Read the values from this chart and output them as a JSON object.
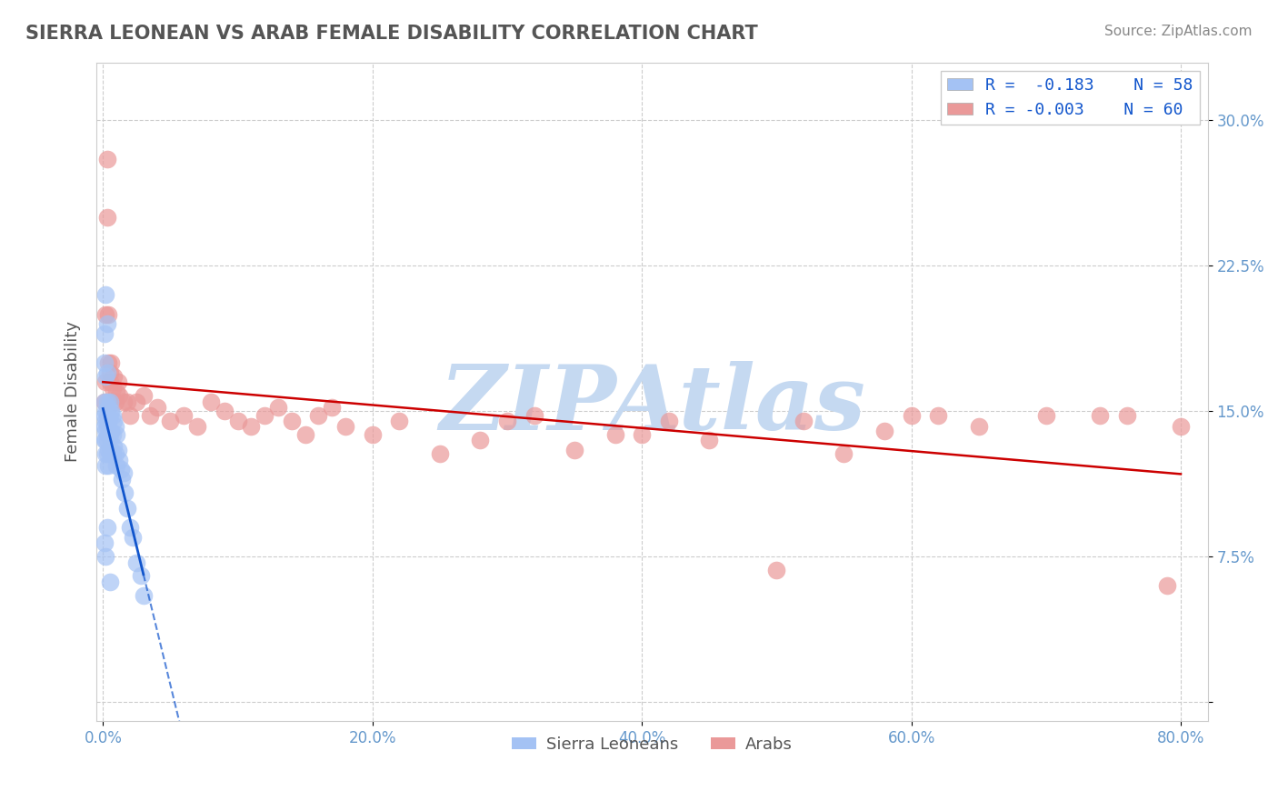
{
  "title": "SIERRA LEONEAN VS ARAB FEMALE DISABILITY CORRELATION CHART",
  "source_text": "Source: ZipAtlas.com",
  "ylabel_text": "Female Disability",
  "x_ticks": [
    0.0,
    0.2,
    0.4,
    0.6,
    0.8
  ],
  "x_tick_labels": [
    "0.0%",
    "20.0%",
    "40.0%",
    "60.0%",
    "80.0%"
  ],
  "y_ticks": [
    0.0,
    0.075,
    0.15,
    0.225,
    0.3
  ],
  "y_tick_labels_right": [
    "",
    "7.5%",
    "15.0%",
    "22.5%",
    "30.0%"
  ],
  "xlim": [
    -0.005,
    0.82
  ],
  "ylim": [
    -0.01,
    0.33
  ],
  "blue_color": "#a4c2f4",
  "pink_color": "#ea9999",
  "blue_line_color": "#1155cc",
  "pink_line_color": "#cc0000",
  "legend_text_color": "#1155cc",
  "watermark": "ZIPAtlas",
  "watermark_color": "#c5d9f1",
  "blue_x": [
    0.001,
    0.001,
    0.001,
    0.001,
    0.002,
    0.002,
    0.002,
    0.002,
    0.002,
    0.002,
    0.003,
    0.003,
    0.003,
    0.003,
    0.003,
    0.004,
    0.004,
    0.004,
    0.004,
    0.004,
    0.005,
    0.005,
    0.005,
    0.005,
    0.006,
    0.006,
    0.006,
    0.007,
    0.007,
    0.007,
    0.008,
    0.008,
    0.009,
    0.009,
    0.01,
    0.01,
    0.011,
    0.012,
    0.013,
    0.014,
    0.015,
    0.016,
    0.018,
    0.02,
    0.022,
    0.025,
    0.028,
    0.03,
    0.001,
    0.001,
    0.001,
    0.002,
    0.002,
    0.002,
    0.003,
    0.003,
    0.003,
    0.005
  ],
  "blue_y": [
    0.155,
    0.148,
    0.142,
    0.135,
    0.15,
    0.145,
    0.14,
    0.135,
    0.128,
    0.122,
    0.155,
    0.148,
    0.142,
    0.135,
    0.128,
    0.152,
    0.145,
    0.138,
    0.13,
    0.122,
    0.155,
    0.148,
    0.138,
    0.128,
    0.15,
    0.14,
    0.13,
    0.148,
    0.138,
    0.128,
    0.145,
    0.132,
    0.142,
    0.128,
    0.138,
    0.122,
    0.13,
    0.125,
    0.12,
    0.115,
    0.118,
    0.108,
    0.1,
    0.09,
    0.085,
    0.072,
    0.065,
    0.055,
    0.19,
    0.175,
    0.082,
    0.21,
    0.168,
    0.075,
    0.195,
    0.17,
    0.09,
    0.062
  ],
  "pink_x": [
    0.001,
    0.002,
    0.002,
    0.003,
    0.003,
    0.004,
    0.004,
    0.005,
    0.005,
    0.006,
    0.007,
    0.008,
    0.009,
    0.01,
    0.011,
    0.012,
    0.015,
    0.018,
    0.02,
    0.025,
    0.03,
    0.035,
    0.04,
    0.05,
    0.06,
    0.07,
    0.08,
    0.09,
    0.1,
    0.11,
    0.12,
    0.13,
    0.14,
    0.15,
    0.16,
    0.17,
    0.18,
    0.2,
    0.22,
    0.25,
    0.28,
    0.3,
    0.32,
    0.35,
    0.38,
    0.4,
    0.42,
    0.45,
    0.5,
    0.52,
    0.55,
    0.58,
    0.6,
    0.62,
    0.65,
    0.7,
    0.74,
    0.76,
    0.79,
    0.8
  ],
  "pink_y": [
    0.155,
    0.2,
    0.165,
    0.28,
    0.25,
    0.175,
    0.2,
    0.165,
    0.17,
    0.175,
    0.162,
    0.168,
    0.155,
    0.16,
    0.165,
    0.158,
    0.155,
    0.155,
    0.148,
    0.155,
    0.158,
    0.148,
    0.152,
    0.145,
    0.148,
    0.142,
    0.155,
    0.15,
    0.145,
    0.142,
    0.148,
    0.152,
    0.145,
    0.138,
    0.148,
    0.152,
    0.142,
    0.138,
    0.145,
    0.128,
    0.135,
    0.145,
    0.148,
    0.13,
    0.138,
    0.138,
    0.145,
    0.135,
    0.068,
    0.145,
    0.128,
    0.14,
    0.148,
    0.148,
    0.142,
    0.148,
    0.148,
    0.148,
    0.06,
    0.142
  ],
  "background_color": "#ffffff",
  "grid_color": "#cccccc",
  "title_color": "#555555"
}
